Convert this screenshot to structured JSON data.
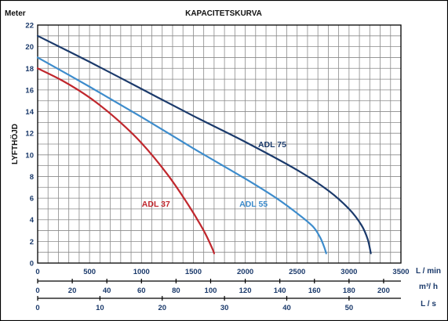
{
  "chart_data": {
    "type": "line",
    "title": "KAPACITETSKURVA",
    "y_unit_label": "Meter",
    "ylabel": "LYFTHÖJD",
    "ylim": [
      0,
      22
    ],
    "yticks": [
      0,
      2,
      4,
      6,
      8,
      10,
      12,
      14,
      16,
      18,
      20,
      22
    ],
    "grid": true,
    "x_axes": [
      {
        "unit": "L / min",
        "range": [
          0,
          3500
        ],
        "ticks": [
          0,
          500,
          1000,
          1500,
          2000,
          2500,
          3000,
          3500
        ],
        "primary": true
      },
      {
        "unit": "m³/ h",
        "range": [
          0,
          210
        ],
        "ticks": [
          0,
          20,
          40,
          60,
          80,
          100,
          120,
          140,
          160,
          180,
          200
        ]
      },
      {
        "unit": "L / s",
        "range": [
          0,
          58.33
        ],
        "ticks": [
          0,
          10,
          20,
          30,
          40,
          50
        ]
      }
    ],
    "series": [
      {
        "name": "ADL 37",
        "color": "#c0272d",
        "label_at": {
          "x": 1140,
          "y": 5.2
        },
        "points": [
          [
            0,
            18
          ],
          [
            250,
            16.8
          ],
          [
            500,
            15.3
          ],
          [
            750,
            13.4
          ],
          [
            1000,
            11.1
          ],
          [
            1250,
            8.2
          ],
          [
            1450,
            5.4
          ],
          [
            1600,
            3.0
          ],
          [
            1680,
            1.4
          ],
          [
            1700,
            0.9
          ]
        ]
      },
      {
        "name": "ADL 55",
        "color": "#3d8ccc",
        "label_at": {
          "x": 2080,
          "y": 5.2
        },
        "points": [
          [
            0,
            19
          ],
          [
            500,
            16.3
          ],
          [
            1000,
            13.5
          ],
          [
            1500,
            10.6
          ],
          [
            2000,
            7.8
          ],
          [
            2300,
            6.0
          ],
          [
            2500,
            4.6
          ],
          [
            2650,
            3.4
          ],
          [
            2720,
            2.4
          ],
          [
            2760,
            1.5
          ],
          [
            2780,
            0.9
          ]
        ]
      },
      {
        "name": "ADL 75",
        "color": "#1b3a6b",
        "label_at": {
          "x": 2260,
          "y": 10.7
        },
        "points": [
          [
            0,
            21
          ],
          [
            500,
            18.6
          ],
          [
            1000,
            16.1
          ],
          [
            1500,
            13.6
          ],
          [
            2000,
            11.2
          ],
          [
            2500,
            8.6
          ],
          [
            2800,
            6.7
          ],
          [
            3000,
            5.0
          ],
          [
            3120,
            3.5
          ],
          [
            3180,
            2.2
          ],
          [
            3210,
            0.9
          ]
        ]
      }
    ]
  }
}
